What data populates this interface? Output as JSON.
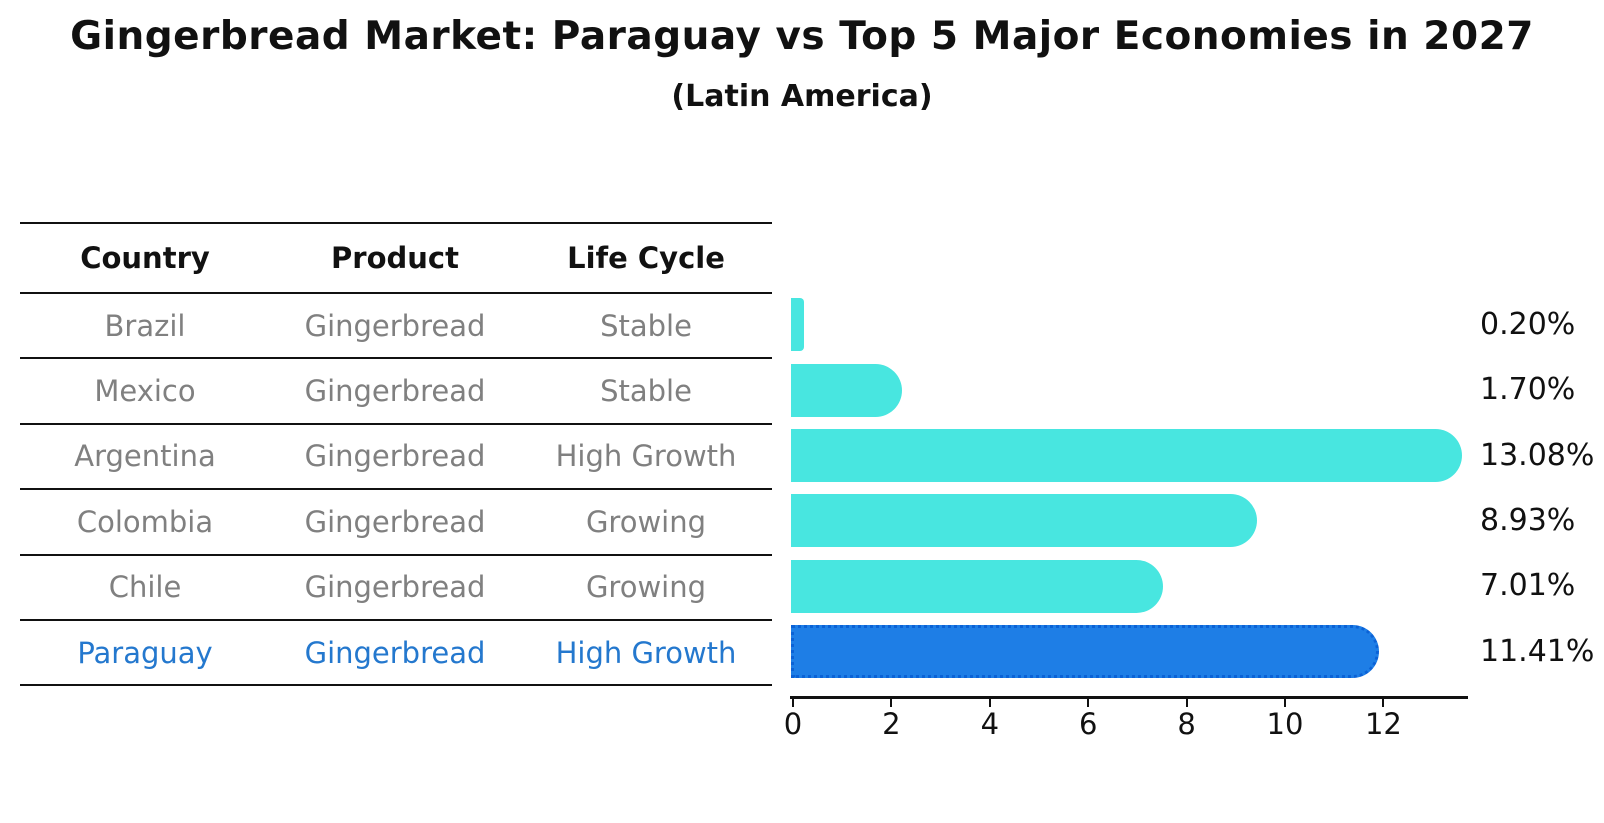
{
  "page": {
    "title": "Gingerbread Market: Paraguay vs Top 5 Major Economies in 2027",
    "subtitle": "(Latin America)"
  },
  "table": {
    "columns": [
      {
        "label": "Country"
      },
      {
        "label": "Product"
      },
      {
        "label": "Life Cycle"
      }
    ]
  },
  "rows": [
    {
      "country": "Brazil",
      "product": "Gingerbread",
      "life_cycle": "Stable",
      "share": "0.20%",
      "highlighted": false
    },
    {
      "country": "Mexico",
      "product": "Gingerbread",
      "life_cycle": "Stable",
      "share": "1.70%",
      "highlighted": false
    },
    {
      "country": "Argentina",
      "product": "Gingerbread",
      "life_cycle": "High Growth",
      "share": "13.08%",
      "highlighted": false
    },
    {
      "country": "Colombia",
      "product": "Gingerbread",
      "life_cycle": "Growing",
      "share": "8.93%",
      "highlighted": false
    },
    {
      "country": "Chile",
      "product": "Gingerbread",
      "life_cycle": "Growing",
      "share": "7.01%",
      "highlighted": false
    },
    {
      "country": "Paraguay",
      "product": "Gingerbread",
      "life_cycle": "High Growth",
      "share": "11.41%",
      "highlighted": true
    }
  ],
  "chart_data": {
    "type": "bar",
    "orientation": "horizontal",
    "title": "Gingerbread Market: Paraguay vs Top 5 Major Economies in 2027",
    "subtitle": "(Latin America)",
    "categories": [
      "Brazil",
      "Mexico",
      "Argentina",
      "Colombia",
      "Chile",
      "Paraguay"
    ],
    "values": [
      0.2,
      1.7,
      13.08,
      8.93,
      7.01,
      11.41
    ],
    "value_labels": [
      "0.20%",
      "1.70%",
      "13.08%",
      "8.93%",
      "7.01%",
      "11.41%"
    ],
    "xlabel": "",
    "ylabel": "",
    "xlim": [
      0,
      13.7
    ],
    "x_ticks": [
      0,
      2,
      4,
      6,
      8,
      10,
      12
    ],
    "grid": false,
    "legend": "none",
    "highlight_index": 5,
    "colors": {
      "bar": "#48E6E0",
      "highlight_bar": "#1E7EE6",
      "highlight_bar_border": "#0B62D6",
      "highlight_text": "#2478CE",
      "table_text": "#808080",
      "line": "#111111"
    }
  }
}
